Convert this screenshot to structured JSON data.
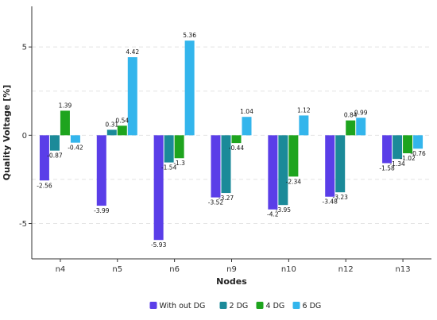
{
  "chart_data": {
    "type": "bar",
    "title": "",
    "xlabel": "Nodes",
    "ylabel": "Quality Voltage [%]",
    "ylim": [
      -7,
      7.3
    ],
    "yticks": [
      -5,
      0,
      5
    ],
    "grid": true,
    "legend_position": "bottom",
    "categories": [
      "n4",
      "n5",
      "n6",
      "n9",
      "n10",
      "n12",
      "n13"
    ],
    "series": [
      {
        "name": "With out DG",
        "color": "#5a3ee8",
        "values": [
          -2.56,
          -3.99,
          -5.93,
          -3.52,
          -4.2,
          -3.48,
          -1.58
        ],
        "labels": [
          "-2.56",
          "-3.99",
          "-5.93",
          "-3.52",
          "-4.2",
          "-3.48",
          "-1.58"
        ]
      },
      {
        "name": "2 DG",
        "color": "#1b8a99",
        "values": [
          -0.87,
          0.31,
          -1.54,
          -3.27,
          -3.95,
          -3.23,
          -1.34
        ],
        "labels": [
          "-0.87",
          "0.31",
          "-1.54",
          "-3.27",
          "-3.95",
          "-3.23",
          "-1.34"
        ]
      },
      {
        "name": "4 DG",
        "color": "#1ea41e",
        "values": [
          1.39,
          0.54,
          -1.3,
          -0.44,
          -2.34,
          0.84,
          -1.02
        ],
        "labels": [
          "1.39",
          "0.54",
          "-1.3",
          "-0.44",
          "-2.34",
          "0.84",
          "-1.02"
        ]
      },
      {
        "name": "6 DG",
        "color": "#33b5ec",
        "values": [
          -0.42,
          4.42,
          5.36,
          1.04,
          1.12,
          0.99,
          -0.76
        ],
        "labels": [
          "-0.42",
          "4.42",
          "5.36",
          "1.04",
          "1.12",
          "0.99",
          "-0.76"
        ]
      }
    ]
  }
}
